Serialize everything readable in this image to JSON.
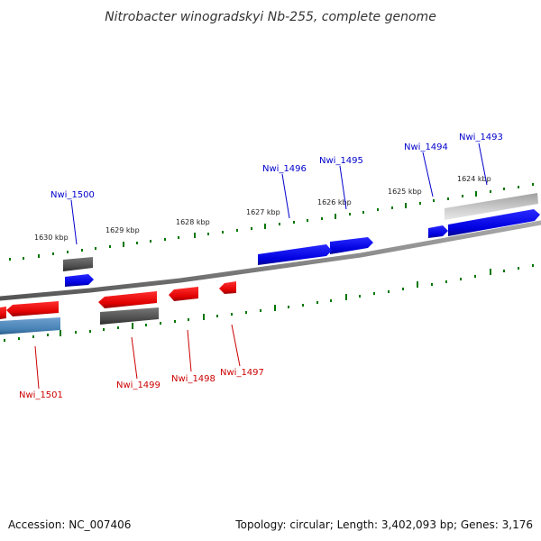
{
  "title": "Nitrobacter winogradskyi Nb-255, complete genome",
  "footer": {
    "accession": "Accession: NC_007406",
    "topology": "Topology: circular; Length: 3,402,093 bp; Genes: 3,176"
  },
  "ticks": {
    "t1624": "1624 kbp",
    "t1625": "1625 kbp",
    "t1626": "1626 kbp",
    "t1627": "1627 kbp",
    "t1628": "1628 kbp",
    "t1629": "1629 kbp",
    "t1630": "1630 kbp"
  },
  "genes": {
    "nwi_1493": "Nwi_1493",
    "nwi_1494": "Nwi_1494",
    "nwi_1495": "Nwi_1495",
    "nwi_1496": "Nwi_1496",
    "nwi_1497": "Nwi_1497",
    "nwi_1498": "Nwi_1498",
    "nwi_1499": "Nwi_1499",
    "nwi_1500": "Nwi_1500",
    "nwi_1501": "Nwi_1501"
  },
  "colors": {
    "forward_gene": "#0000ee",
    "reverse_gene": "#ee0000",
    "pseudo_gene": "#555555",
    "rna_gene": "#4682b4",
    "tick_mark": "#007700",
    "backbone": "#888888"
  }
}
